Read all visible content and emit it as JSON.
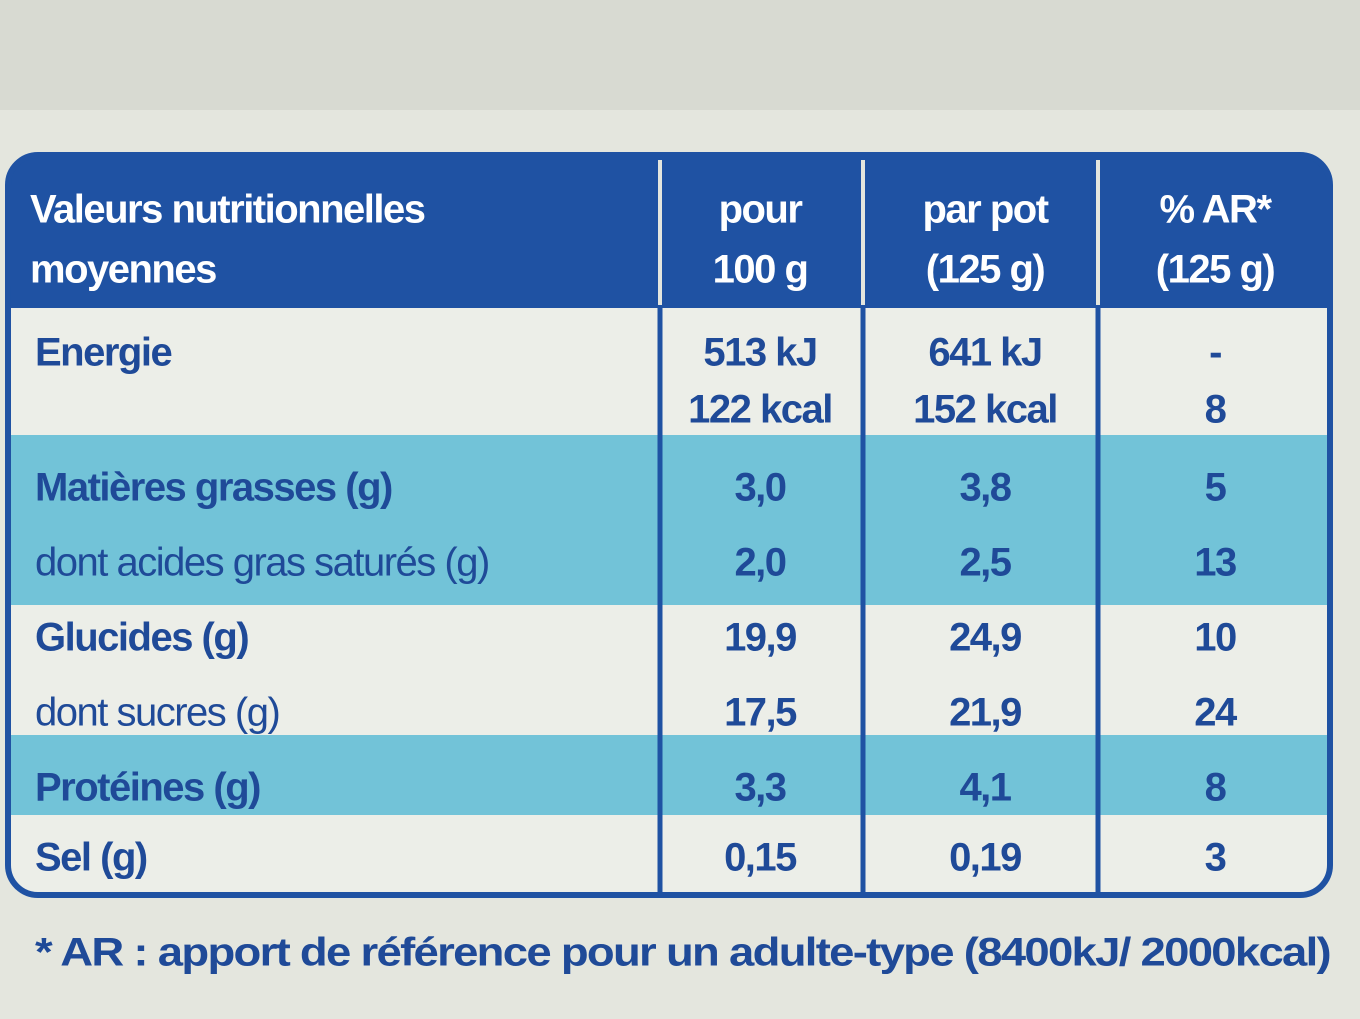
{
  "header": {
    "columns": [
      [
        "Valeurs nutritionnelles",
        "moyennes"
      ],
      [
        "pour",
        "100 g"
      ],
      [
        "par pot",
        "(125 g)"
      ],
      [
        "% AR*",
        "(125 g)"
      ]
    ]
  },
  "rows": [
    {
      "label": "Energie",
      "cells": [
        [
          "513 kJ",
          "122 kcal"
        ],
        [
          "641 kJ",
          "152 kcal"
        ],
        [
          "-",
          "8"
        ]
      ]
    },
    {
      "label": "Matières grasses (g)",
      "cells": [
        [
          "3,0"
        ],
        [
          "3,8"
        ],
        [
          "5"
        ]
      ]
    },
    {
      "label": "dont acides gras saturés (g)",
      "cells": [
        [
          "2,0"
        ],
        [
          "2,5"
        ],
        [
          "13"
        ]
      ]
    },
    {
      "label": "Glucides (g)",
      "cells": [
        [
          "19,9"
        ],
        [
          "24,9"
        ],
        [
          "10"
        ]
      ]
    },
    {
      "label": "dont sucres (g)",
      "cells": [
        [
          "17,5"
        ],
        [
          "21,9"
        ],
        [
          "24"
        ]
      ]
    },
    {
      "label": "Protéines (g)",
      "cells": [
        [
          "3,3"
        ],
        [
          "4,1"
        ],
        [
          "8"
        ]
      ]
    },
    {
      "label": "Sel (g)",
      "cells": [
        [
          "0,15"
        ],
        [
          "0,19"
        ],
        [
          "3"
        ]
      ]
    }
  ],
  "footnote": "* AR : apport de référence pour un adulte-type (8400kJ/ 2000kcal)"
}
